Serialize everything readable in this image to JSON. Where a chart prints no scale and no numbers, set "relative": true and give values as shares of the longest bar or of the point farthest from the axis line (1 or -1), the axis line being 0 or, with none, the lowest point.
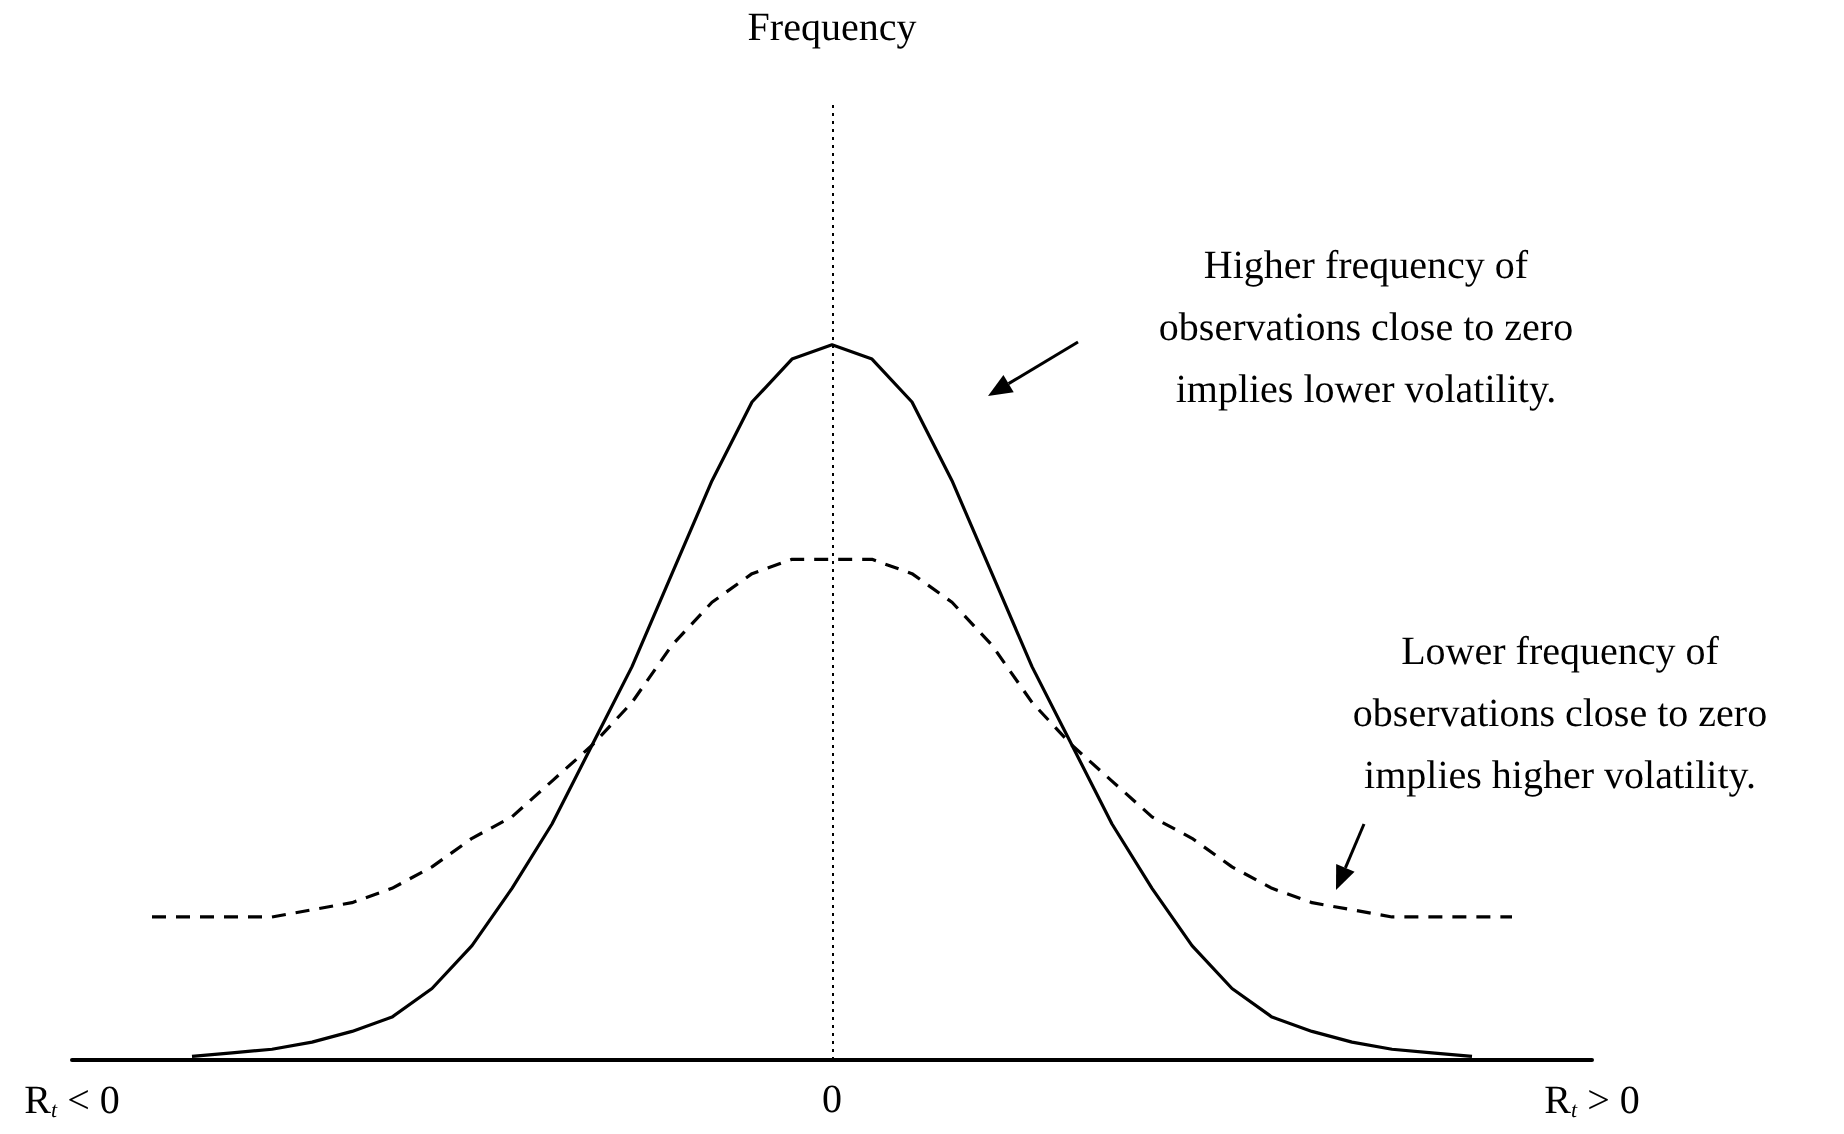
{
  "chart_data": {
    "type": "line",
    "relative": true,
    "categories": [
      "R$_{t}$ < 0",
      null,
      null,
      null,
      null,
      null,
      null,
      null,
      null,
      null,
      null,
      null,
      null,
      null,
      null,
      null,
      null,
      null,
      null,
      "0",
      null,
      null,
      null,
      null,
      null,
      null,
      null,
      null,
      null,
      null,
      null,
      null,
      null,
      null,
      null,
      null,
      null,
      null,
      "R$_{t}$ > 0"
    ],
    "series": [
      {
        "color": "#000000",
        "line_style": "solid",
        "values": [
          null,
          null,
          null,
          0.005,
          0.01,
          0.015,
          0.025,
          0.04,
          0.06,
          0.1,
          0.16,
          0.24,
          0.33,
          0.44,
          0.55,
          0.68,
          0.81,
          0.92,
          0.98,
          1.0,
          0.98,
          0.92,
          0.81,
          0.68,
          0.55,
          0.44,
          0.33,
          0.24,
          0.16,
          0.1,
          0.06,
          0.04,
          0.025,
          0.015,
          0.01,
          0.005,
          null,
          null,
          null
        ]
      },
      {
        "color": "#000000",
        "line_style": "dashed",
        "values": [
          null,
          null,
          0.2,
          0.2,
          0.2,
          0.2,
          0.21,
          0.22,
          0.24,
          0.27,
          0.31,
          0.34,
          0.39,
          0.44,
          0.5,
          0.58,
          0.64,
          0.68,
          0.7,
          0.7,
          0.7,
          0.68,
          0.64,
          0.58,
          0.5,
          0.44,
          0.39,
          0.34,
          0.31,
          0.27,
          0.24,
          0.22,
          0.21,
          0.2,
          0.2,
          0.2,
          0.2,
          null,
          null
        ]
      }
    ],
    "ref_lines": [
      {
        "axis": "x",
        "value": "0",
        "line_style": "dotted",
        "color": "#000000"
      }
    ],
    "annotations": [
      "Frequency",
      "Higher frequency of observations close to zero implies lower volatility.",
      "Lower frequency of observations close to zero implies higher volatility."
    ],
    "grid": false,
    "marker": "none"
  }
}
